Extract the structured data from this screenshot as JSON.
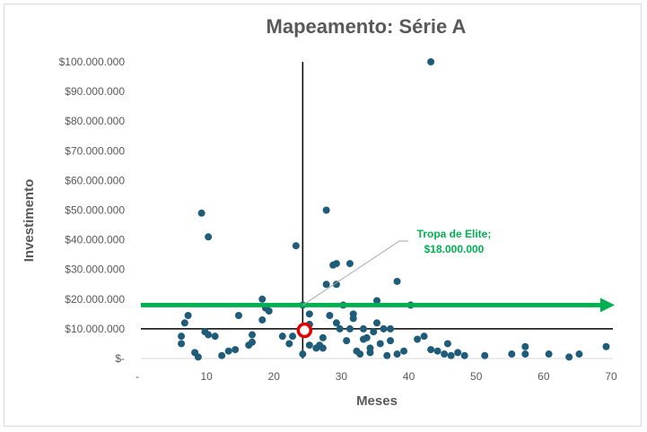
{
  "chart_data": {
    "type": "scatter",
    "title": "Mapeamento: Série A",
    "xlabel": "Meses",
    "ylabel": "Investimento",
    "xlim": [
      0,
      70
    ],
    "ylim": [
      0,
      100000000
    ],
    "x_ticks": [
      0,
      10,
      20,
      30,
      40,
      50,
      60,
      70
    ],
    "x_tick_labels": [
      "-",
      "10",
      "20",
      "30",
      "40",
      "50",
      "60",
      "70"
    ],
    "y_ticks": [
      0,
      10000000,
      20000000,
      30000000,
      40000000,
      50000000,
      60000000,
      70000000,
      80000000,
      90000000,
      100000000
    ],
    "y_tick_labels": [
      "$-",
      "$10.000.000",
      "$20.000.000",
      "$30.000.000",
      "$40.000.000",
      "$50.000.000",
      "$60.000.000",
      "$70.000.000",
      "$80.000.000",
      "$90.000.000",
      "$100.000.000"
    ],
    "grid": false,
    "point_color": "#1f5c7a",
    "reference_lines": {
      "vertical_x": 24,
      "horizontal_y": 10000000,
      "color": "#000000"
    },
    "arrow": {
      "y": 18000000,
      "color": "#00b050"
    },
    "highlight": {
      "x": 24,
      "y": 9500000,
      "color": "#e30000"
    },
    "annotation": {
      "line1": "Tropa de Elite;",
      "line2": "$18.000.000",
      "x": 24,
      "y": 18000000,
      "color": "#00b050"
    },
    "points": [
      [
        6,
        5000000
      ],
      [
        6,
        7500000
      ],
      [
        6.5,
        12000000
      ],
      [
        7,
        14500000
      ],
      [
        8,
        2000000
      ],
      [
        8.5,
        500000
      ],
      [
        9,
        49000000
      ],
      [
        9.5,
        9000000
      ],
      [
        10,
        41000000
      ],
      [
        10,
        8000000
      ],
      [
        11,
        7500000
      ],
      [
        12,
        1000000
      ],
      [
        13,
        2500000
      ],
      [
        14,
        3000000
      ],
      [
        14.5,
        14500000
      ],
      [
        16,
        4500000
      ],
      [
        16.5,
        8000000
      ],
      [
        16.5,
        5500000
      ],
      [
        18,
        20000000
      ],
      [
        18,
        13000000
      ],
      [
        18.5,
        17000000
      ],
      [
        19,
        16000000
      ],
      [
        21,
        7500000
      ],
      [
        22,
        5000000
      ],
      [
        22.5,
        7500000
      ],
      [
        23,
        38000000
      ],
      [
        24,
        18000000
      ],
      [
        24,
        1500000
      ],
      [
        25,
        15000000
      ],
      [
        25,
        11500000
      ],
      [
        25,
        4500000
      ],
      [
        26,
        3500000
      ],
      [
        26.5,
        4500000
      ],
      [
        27,
        3500000
      ],
      [
        27,
        7000000
      ],
      [
        27.5,
        25000000
      ],
      [
        27.5,
        50000000
      ],
      [
        28,
        14500000
      ],
      [
        28.5,
        31500000
      ],
      [
        29,
        32000000
      ],
      [
        29,
        25000000
      ],
      [
        29,
        12000000
      ],
      [
        29.5,
        10000000
      ],
      [
        30,
        18000000
      ],
      [
        30.5,
        6000000
      ],
      [
        31,
        32000000
      ],
      [
        31,
        10000000
      ],
      [
        31.5,
        13500000
      ],
      [
        31.5,
        15000000
      ],
      [
        32,
        2500000
      ],
      [
        32.5,
        1500000
      ],
      [
        33,
        6500000
      ],
      [
        33,
        10000000
      ],
      [
        33.5,
        7000000
      ],
      [
        34,
        2000000
      ],
      [
        34,
        3500000
      ],
      [
        34.5,
        9000000
      ],
      [
        35,
        19500000
      ],
      [
        35,
        12000000
      ],
      [
        35.5,
        5000000
      ],
      [
        36,
        10000000
      ],
      [
        36.5,
        1000000
      ],
      [
        37,
        6000000
      ],
      [
        37,
        10000000
      ],
      [
        38,
        26000000
      ],
      [
        38,
        1500000
      ],
      [
        39,
        2500000
      ],
      [
        40,
        18000000
      ],
      [
        41,
        6500000
      ],
      [
        42,
        7500000
      ],
      [
        43,
        100000000
      ],
      [
        43,
        3000000
      ],
      [
        44,
        2500000
      ],
      [
        45,
        1500000
      ],
      [
        45.5,
        5000000
      ],
      [
        46,
        1000000
      ],
      [
        47,
        2000000
      ],
      [
        48,
        1000000
      ],
      [
        51,
        1000000
      ],
      [
        55,
        1500000
      ],
      [
        57,
        4000000
      ],
      [
        57,
        1500000
      ],
      [
        60.5,
        1500000
      ],
      [
        63.5,
        500000
      ],
      [
        65,
        1500000
      ],
      [
        69,
        4000000
      ]
    ]
  }
}
